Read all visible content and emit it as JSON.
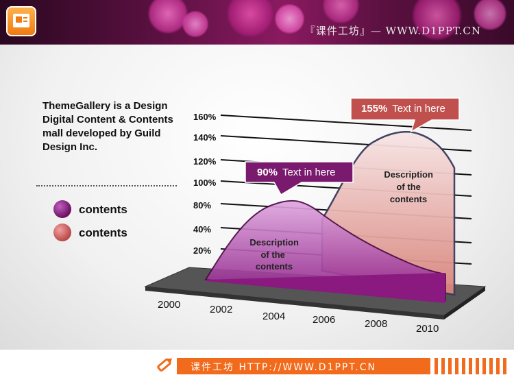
{
  "header": {
    "title": "『课件工坊』— WWW.D1PPT.CN",
    "icon": "presentation-icon"
  },
  "description": "ThemeGallery is a Design Digital Content & Contents mall developed by Guild Design Inc.",
  "legend": [
    {
      "label": "contents",
      "color": "#7a1a6e"
    },
    {
      "label": "contents",
      "color": "#c0504d"
    }
  ],
  "chart_data": {
    "type": "area",
    "categories": [
      "2000",
      "2002",
      "2004",
      "2006",
      "2008",
      "2010"
    ],
    "y_ticks": [
      "20%",
      "40%",
      "80%",
      "100%",
      "120%",
      "140%",
      "160%"
    ],
    "series": [
      {
        "color": "#8b2a8a",
        "values": [
          8,
          45,
          88,
          55,
          32,
          22
        ],
        "callout_value": "90%",
        "callout_text": "Text in here",
        "annotation": [
          "Description",
          "of the",
          "contents"
        ]
      },
      {
        "color": "#d9827a",
        "values": [
          0,
          20,
          55,
          100,
          150,
          135
        ],
        "callout_value": "155%",
        "callout_text": "Text in here",
        "annotation": [
          "Description",
          "of the",
          "contents"
        ]
      }
    ],
    "grid": true
  },
  "footer": {
    "text": "课件工坊 HTTP://WWW.D1PPT.CN",
    "icon": "pencil-icon"
  }
}
